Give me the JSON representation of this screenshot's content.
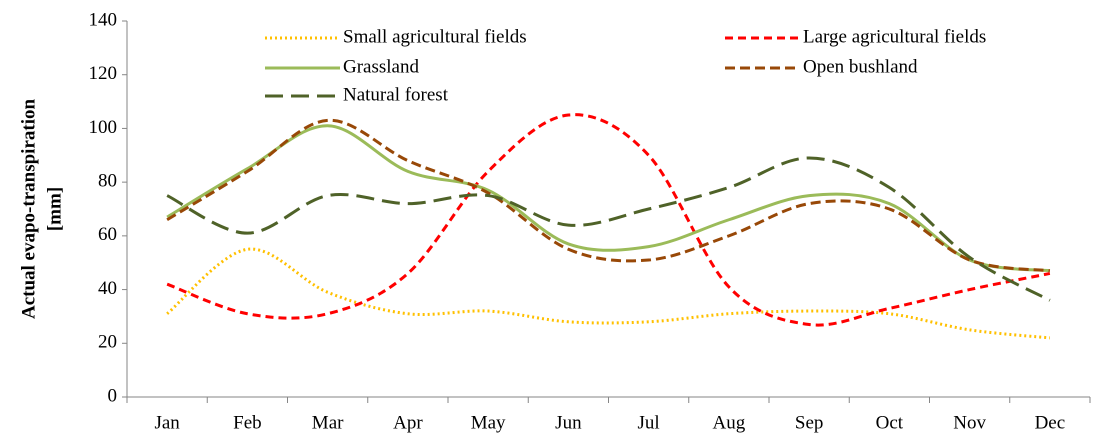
{
  "chart_data": {
    "type": "line",
    "ylabel": [
      "Actual evapo-transpiration",
      "[mm]"
    ],
    "categories": [
      "Jan",
      "Feb",
      "Mar",
      "Apr",
      "May",
      "Jun",
      "Jul",
      "Aug",
      "Sep",
      "Oct",
      "Nov",
      "Dec"
    ],
    "series": [
      {
        "name": "Small agricultural fields",
        "color": "#FFC000",
        "dash": "2,3",
        "values": [
          31,
          55,
          39,
          31,
          32,
          28,
          28,
          31,
          32,
          31,
          25,
          22
        ]
      },
      {
        "name": "Large agricultural fields",
        "color": "#FF0000",
        "dash": "8,5",
        "values": [
          42,
          31,
          31,
          46,
          84,
          105,
          90,
          41,
          27,
          33,
          40,
          46
        ]
      },
      {
        "name": "Grassland",
        "color": "#9BBB59",
        "dash": "none",
        "values": [
          67,
          85,
          101,
          84,
          77,
          57,
          56,
          66,
          75,
          72,
          51,
          47
        ]
      },
      {
        "name": "Open bushland",
        "color": "#984807",
        "dash": "10,5",
        "values": [
          66,
          84,
          103,
          88,
          76,
          55,
          51,
          60,
          72,
          70,
          51,
          47
        ]
      },
      {
        "name": "Natural forest",
        "color": "#4F6228",
        "dash": "18,8",
        "values": [
          75,
          61,
          75,
          72,
          75,
          64,
          70,
          78,
          89,
          78,
          52,
          36
        ]
      }
    ],
    "ylim": [
      0,
      140
    ],
    "yticks": [
      0,
      20,
      40,
      60,
      80,
      100,
      120,
      140
    ],
    "smooth": true
  }
}
